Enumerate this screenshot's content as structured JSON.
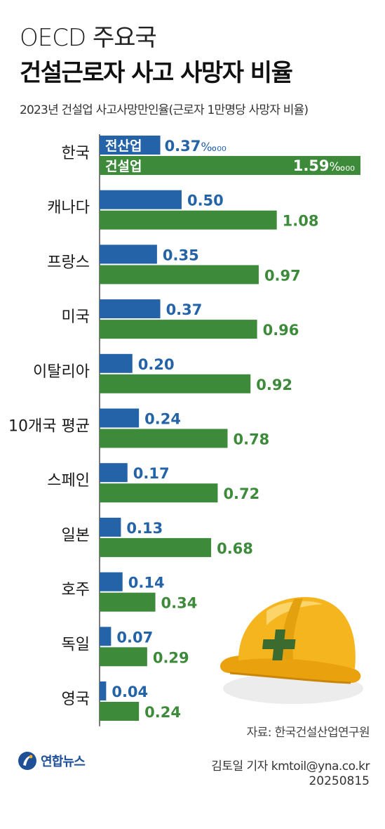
{
  "header": {
    "pre_title": "OECD 주요국",
    "title": "건설근로자 사고 사망자 비율",
    "subtitle": "2023년 건설업 사고사망만인율(근로자 1만명당 사망자 비율)"
  },
  "footer": {
    "source": "자료: 한국건설산업연구원",
    "reporter": "김토일 기자 kmtoil@yna.co.kr",
    "date": "20250815",
    "logo_text": "연합뉴스"
  },
  "colors": {
    "all_industry": "#2563a8",
    "construction": "#3d8b3a",
    "helmet": "#f5b51e"
  },
  "chart_data": {
    "type": "bar",
    "orientation": "horizontal",
    "unit": "‰₀₀",
    "categories": [
      "한국",
      "캐나다",
      "프랑스",
      "미국",
      "이탈리아",
      "10개국 평균",
      "스페인",
      "일본",
      "호주",
      "독일",
      "영국"
    ],
    "series": [
      {
        "name": "전산업",
        "values": [
          0.37,
          0.5,
          0.35,
          0.37,
          0.2,
          0.24,
          0.17,
          0.13,
          0.14,
          0.07,
          0.04
        ]
      },
      {
        "name": "건설업",
        "values": [
          1.59,
          1.08,
          0.97,
          0.96,
          0.92,
          0.78,
          0.72,
          0.68,
          0.34,
          0.29,
          0.24
        ]
      }
    ],
    "value_labels": {
      "전산업": [
        "0.37",
        "0.50",
        "0.35",
        "0.37",
        "0.20",
        "0.24",
        "0.17",
        "0.13",
        "0.14",
        "0.07",
        "0.04"
      ],
      "건설업": [
        "1.59",
        "1.08",
        "0.97",
        "0.96",
        "0.92",
        "0.78",
        "0.72",
        "0.68",
        "0.34",
        "0.29",
        "0.24"
      ]
    },
    "xlim": [
      0,
      1.59
    ],
    "grid": false,
    "legend": "inline-first-row"
  }
}
